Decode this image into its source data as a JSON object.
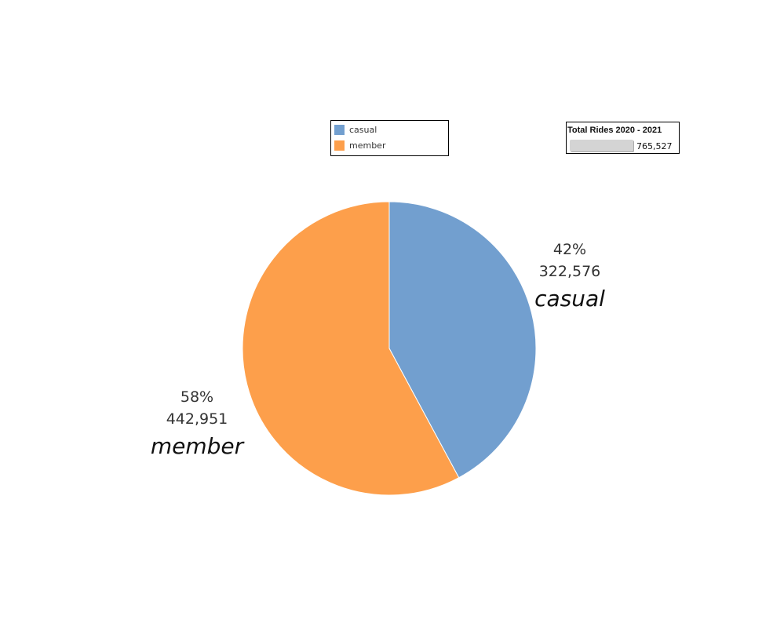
{
  "chart_data": {
    "type": "pie",
    "series": [
      {
        "name": "casual",
        "value": 322576,
        "percent_label": "42%",
        "value_label": "322,576",
        "color": "#729fcf"
      },
      {
        "name": "member",
        "value": 442951,
        "percent_label": "58%",
        "value_label": "442,951",
        "color": "#fd9f4b"
      }
    ],
    "legend": {
      "placement": "top-center",
      "items": [
        {
          "label": "casual",
          "color": "#729fcf"
        },
        {
          "label": "member",
          "color": "#fd9f4b"
        }
      ]
    }
  },
  "total_box": {
    "title": "Total Rides 2020 - 2021",
    "value": "765,527",
    "total_value": 765527
  }
}
